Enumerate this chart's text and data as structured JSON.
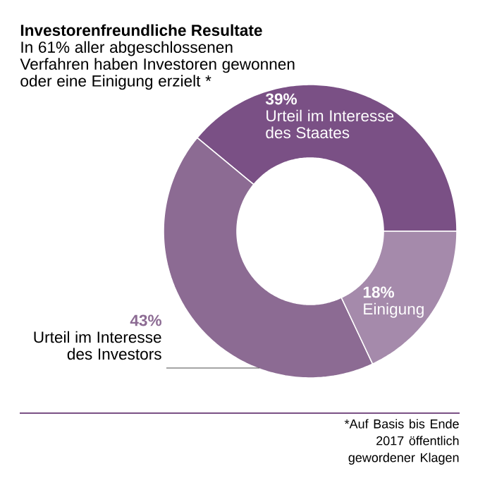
{
  "chart_data": {
    "type": "donut",
    "title": "Investorenfreundliche Resultate",
    "subtitle": "In 61% aller abgeschlossenen Verfahren haben Investoren gewonnen oder eine Einigung erzielt *",
    "categories": [
      "Urteil im Interesse des Staates",
      "Urteil im Interesse des Investors",
      "Einigung"
    ],
    "values": [
      39,
      43,
      18
    ],
    "value_labels": [
      "39%",
      "43%",
      "18%"
    ],
    "colors": [
      "#7a5085",
      "#8c6b93",
      "#a58aab"
    ],
    "annotations": [
      "*Auf Basis bis Ende 2017 öffentlich gewordener Klagen"
    ]
  }
}
